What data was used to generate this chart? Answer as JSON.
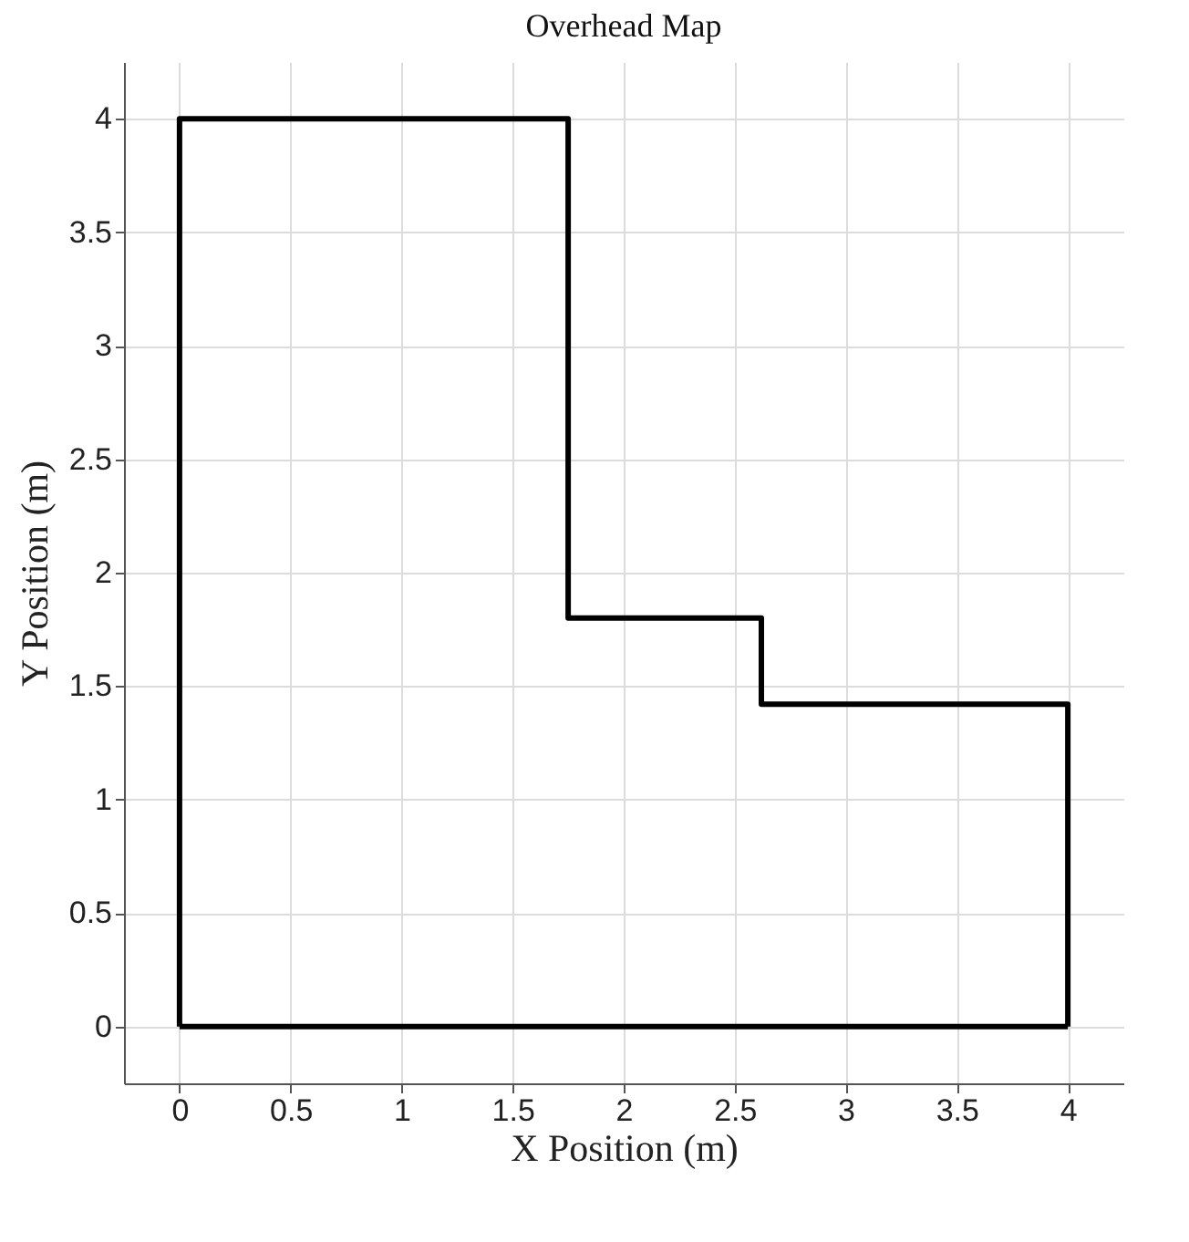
{
  "chart_data": {
    "type": "line",
    "title": "Overhead Map",
    "xlabel": "X Position (m)",
    "ylabel": "Y Position (m)",
    "series": [
      {
        "color": "#000000",
        "x": [
          0,
          0,
          1.75,
          1.75,
          2.62,
          2.62,
          4,
          4
        ],
        "values": [
          0,
          4,
          4,
          1.8,
          1.8,
          1.42,
          1.42,
          0
        ]
      },
      {
        "color": "#000000",
        "x": [
          0,
          4
        ],
        "values": [
          0,
          0
        ]
      }
    ],
    "xlim": [
      -0.25,
      4.25
    ],
    "ylim": [
      -0.25,
      4.25
    ],
    "xticks": [
      0,
      0.5,
      1,
      1.5,
      2,
      2.5,
      3,
      3.5,
      4
    ],
    "yticks": [
      0,
      0.5,
      1,
      1.5,
      2,
      2.5,
      3,
      3.5,
      4
    ],
    "grid": true,
    "marker": "none",
    "line_style": "solid"
  }
}
